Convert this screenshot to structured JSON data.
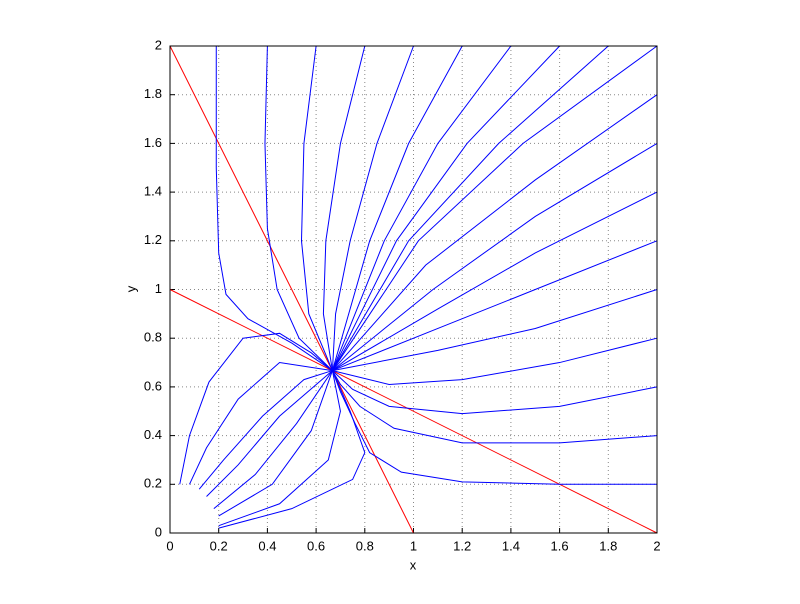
{
  "chart_data": {
    "type": "line",
    "xlabel": "x",
    "ylabel": "y",
    "xlim": [
      0,
      2
    ],
    "ylim": [
      0,
      2
    ],
    "xticks": [
      0,
      0.2,
      0.4,
      0.6,
      0.8,
      1,
      1.2,
      1.4,
      1.6,
      1.8,
      2
    ],
    "yticks": [
      0,
      0.2,
      0.4,
      0.6,
      0.8,
      1,
      1.2,
      1.4,
      1.6,
      1.8,
      2
    ],
    "grid": true,
    "series": [
      {
        "color": "#ff0000",
        "x": [
          0,
          1
        ],
        "y": [
          2,
          0
        ]
      },
      {
        "color": "#ff0000",
        "x": [
          0,
          2
        ],
        "y": [
          1,
          0
        ]
      },
      {
        "color": "#0000ff",
        "x": [
          0.19,
          0.19,
          0.2,
          0.23,
          0.32,
          0.5,
          0.667
        ],
        "y": [
          2,
          1.5,
          1.15,
          0.98,
          0.88,
          0.78,
          0.667
        ]
      },
      {
        "color": "#0000ff",
        "x": [
          0.4,
          0.39,
          0.4,
          0.44,
          0.53,
          0.667
        ],
        "y": [
          2,
          1.6,
          1.25,
          1.0,
          0.8,
          0.667
        ]
      },
      {
        "color": "#0000ff",
        "x": [
          0.6,
          0.55,
          0.54,
          0.57,
          0.667
        ],
        "y": [
          2,
          1.6,
          1.2,
          0.9,
          0.667
        ]
      },
      {
        "color": "#0000ff",
        "x": [
          0.8,
          0.7,
          0.64,
          0.63,
          0.667
        ],
        "y": [
          2,
          1.6,
          1.2,
          0.9,
          0.667
        ]
      },
      {
        "color": "#0000ff",
        "x": [
          1.0,
          0.85,
          0.74,
          0.68,
          0.667
        ],
        "y": [
          2,
          1.6,
          1.2,
          0.9,
          0.667
        ]
      },
      {
        "color": "#0000ff",
        "x": [
          1.2,
          0.98,
          0.82,
          0.667
        ],
        "y": [
          2,
          1.6,
          1.2,
          0.667
        ]
      },
      {
        "color": "#0000ff",
        "x": [
          1.4,
          1.1,
          0.88,
          0.667
        ],
        "y": [
          2,
          1.6,
          1.2,
          0.667
        ]
      },
      {
        "color": "#0000ff",
        "x": [
          1.6,
          1.22,
          0.93,
          0.667
        ],
        "y": [
          2,
          1.6,
          1.2,
          0.667
        ]
      },
      {
        "color": "#0000ff",
        "x": [
          1.8,
          1.35,
          0.98,
          0.667
        ],
        "y": [
          2,
          1.6,
          1.2,
          0.667
        ]
      },
      {
        "color": "#0000ff",
        "x": [
          2,
          1.45,
          1.02,
          0.667
        ],
        "y": [
          2,
          1.6,
          1.2,
          0.667
        ]
      },
      {
        "color": "#0000ff",
        "x": [
          2,
          1.5,
          1.05,
          0.667
        ],
        "y": [
          1.8,
          1.45,
          1.1,
          0.667
        ]
      },
      {
        "color": "#0000ff",
        "x": [
          2,
          1.5,
          1.08,
          0.667
        ],
        "y": [
          1.6,
          1.3,
          1.0,
          0.667
        ]
      },
      {
        "color": "#0000ff",
        "x": [
          2,
          1.5,
          1.1,
          0.667
        ],
        "y": [
          1.4,
          1.15,
          0.92,
          0.667
        ]
      },
      {
        "color": "#0000ff",
        "x": [
          2,
          1.5,
          1.1,
          0.667
        ],
        "y": [
          1.2,
          1.0,
          0.84,
          0.667
        ]
      },
      {
        "color": "#0000ff",
        "x": [
          2,
          1.5,
          1.1,
          0.667
        ],
        "y": [
          1.0,
          0.84,
          0.75,
          0.667
        ]
      },
      {
        "color": "#0000ff",
        "x": [
          2,
          1.6,
          1.2,
          0.9,
          0.667
        ],
        "y": [
          0.8,
          0.7,
          0.63,
          0.61,
          0.667
        ]
      },
      {
        "color": "#0000ff",
        "x": [
          2,
          1.6,
          1.2,
          0.9,
          0.75,
          0.667
        ],
        "y": [
          0.6,
          0.52,
          0.49,
          0.52,
          0.59,
          0.667
        ]
      },
      {
        "color": "#0000ff",
        "x": [
          2,
          1.6,
          1.2,
          0.92,
          0.78,
          0.7,
          0.667
        ],
        "y": [
          0.4,
          0.37,
          0.37,
          0.43,
          0.52,
          0.61,
          0.667
        ]
      },
      {
        "color": "#0000ff",
        "x": [
          2,
          1.6,
          1.2,
          0.95,
          0.82,
          0.76,
          0.7,
          0.667
        ],
        "y": [
          0.2,
          0.2,
          0.21,
          0.25,
          0.33,
          0.45,
          0.58,
          0.667
        ]
      },
      {
        "color": "#0000ff",
        "x": [
          0.04,
          0.08,
          0.16,
          0.3,
          0.45,
          0.58,
          0.667
        ],
        "y": [
          0.2,
          0.4,
          0.62,
          0.8,
          0.82,
          0.74,
          0.667
        ]
      },
      {
        "color": "#0000ff",
        "x": [
          0.08,
          0.15,
          0.28,
          0.45,
          0.667
        ],
        "y": [
          0.2,
          0.35,
          0.55,
          0.7,
          0.667
        ]
      },
      {
        "color": "#0000ff",
        "x": [
          0.12,
          0.22,
          0.38,
          0.55,
          0.667
        ],
        "y": [
          0.18,
          0.3,
          0.48,
          0.63,
          0.667
        ]
      },
      {
        "color": "#0000ff",
        "x": [
          0.15,
          0.28,
          0.45,
          0.667
        ],
        "y": [
          0.15,
          0.28,
          0.48,
          0.667
        ]
      },
      {
        "color": "#0000ff",
        "x": [
          0.18,
          0.35,
          0.52,
          0.667
        ],
        "y": [
          0.1,
          0.24,
          0.45,
          0.667
        ]
      },
      {
        "color": "#0000ff",
        "x": [
          0.2,
          0.42,
          0.58,
          0.667
        ],
        "y": [
          0.07,
          0.2,
          0.42,
          0.667
        ]
      },
      {
        "color": "#0000ff",
        "x": [
          0.2,
          0.45,
          0.65,
          0.7,
          0.667
        ],
        "y": [
          0.03,
          0.12,
          0.3,
          0.5,
          0.667
        ]
      },
      {
        "color": "#0000ff",
        "x": [
          0.2,
          0.5,
          0.75,
          0.8,
          0.74,
          0.667
        ],
        "y": [
          0.02,
          0.1,
          0.22,
          0.33,
          0.5,
          0.667
        ]
      }
    ]
  }
}
